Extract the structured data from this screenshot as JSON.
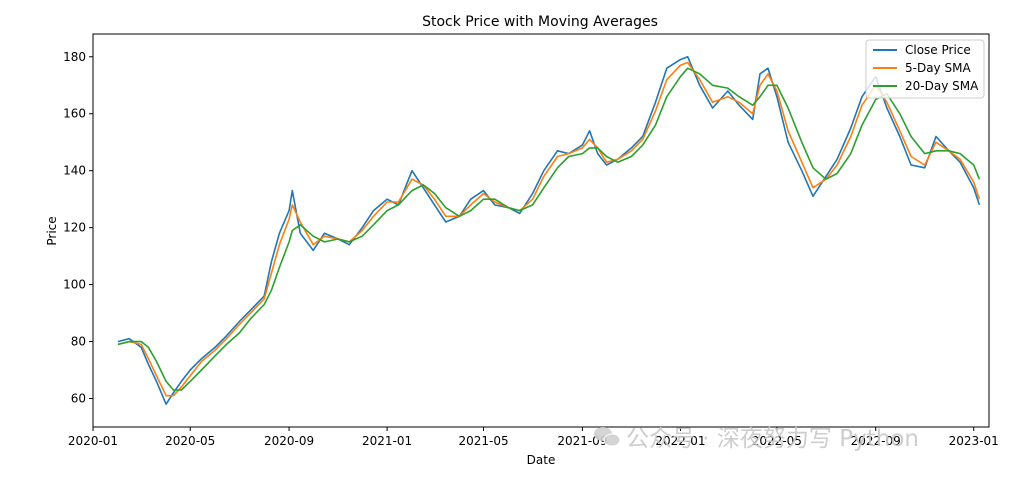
{
  "watermark": {
    "text": "公众号 · 深夜努力写 Python",
    "icon": "wechat-icon"
  },
  "chart_data": {
    "type": "line",
    "title": "Stock Price with Moving Averages",
    "xlabel": "Date",
    "ylabel": "Price",
    "xlim": [
      "2020-01-01",
      "2023-01-20"
    ],
    "ylim": [
      50,
      188
    ],
    "yticks": [
      60,
      80,
      100,
      120,
      140,
      160,
      180
    ],
    "xticks": [
      "2020-01",
      "2020-05",
      "2020-09",
      "2021-01",
      "2021-05",
      "2021-09",
      "2022-01",
      "2022-05",
      "2022-09",
      "2023-01"
    ],
    "legend_position": "top-right",
    "grid": false,
    "series": [
      {
        "name": "Close Price",
        "color": "#1f77b4",
        "points": [
          [
            "2020-02-01",
            80
          ],
          [
            "2020-02-15",
            81
          ],
          [
            "2020-03-01",
            78
          ],
          [
            "2020-03-10",
            72
          ],
          [
            "2020-03-20",
            66
          ],
          [
            "2020-04-01",
            58
          ],
          [
            "2020-04-10",
            62
          ],
          [
            "2020-04-20",
            66
          ],
          [
            "2020-05-01",
            70
          ],
          [
            "2020-05-15",
            74
          ],
          [
            "2020-06-01",
            78
          ],
          [
            "2020-06-15",
            82
          ],
          [
            "2020-07-01",
            87
          ],
          [
            "2020-07-15",
            91
          ],
          [
            "2020-08-01",
            96
          ],
          [
            "2020-08-10",
            108
          ],
          [
            "2020-08-20",
            118
          ],
          [
            "2020-09-01",
            126
          ],
          [
            "2020-09-05",
            133
          ],
          [
            "2020-09-15",
            118
          ],
          [
            "2020-10-01",
            112
          ],
          [
            "2020-10-15",
            118
          ],
          [
            "2020-11-01",
            116
          ],
          [
            "2020-11-15",
            114
          ],
          [
            "2020-12-01",
            120
          ],
          [
            "2020-12-15",
            126
          ],
          [
            "2021-01-01",
            130
          ],
          [
            "2021-01-15",
            128
          ],
          [
            "2021-02-01",
            140
          ],
          [
            "2021-02-15",
            134
          ],
          [
            "2021-03-01",
            128
          ],
          [
            "2021-03-15",
            122
          ],
          [
            "2021-04-01",
            124
          ],
          [
            "2021-04-15",
            130
          ],
          [
            "2021-05-01",
            133
          ],
          [
            "2021-05-15",
            128
          ],
          [
            "2021-06-01",
            127
          ],
          [
            "2021-06-15",
            125
          ],
          [
            "2021-07-01",
            132
          ],
          [
            "2021-07-15",
            140
          ],
          [
            "2021-08-01",
            147
          ],
          [
            "2021-08-15",
            146
          ],
          [
            "2021-09-01",
            149
          ],
          [
            "2021-09-10",
            154
          ],
          [
            "2021-09-20",
            146
          ],
          [
            "2021-10-01",
            142
          ],
          [
            "2021-10-15",
            144
          ],
          [
            "2021-11-01",
            148
          ],
          [
            "2021-11-15",
            152
          ],
          [
            "2021-12-01",
            164
          ],
          [
            "2021-12-15",
            176
          ],
          [
            "2022-01-01",
            179
          ],
          [
            "2022-01-10",
            180
          ],
          [
            "2022-01-25",
            170
          ],
          [
            "2022-02-10",
            162
          ],
          [
            "2022-03-01",
            168
          ],
          [
            "2022-03-15",
            163
          ],
          [
            "2022-04-01",
            158
          ],
          [
            "2022-04-10",
            174
          ],
          [
            "2022-04-20",
            176
          ],
          [
            "2022-05-01",
            166
          ],
          [
            "2022-05-15",
            150
          ],
          [
            "2022-06-01",
            140
          ],
          [
            "2022-06-15",
            131
          ],
          [
            "2022-07-01",
            138
          ],
          [
            "2022-07-15",
            144
          ],
          [
            "2022-08-01",
            155
          ],
          [
            "2022-08-15",
            166
          ],
          [
            "2022-09-01",
            173
          ],
          [
            "2022-09-15",
            162
          ],
          [
            "2022-10-01",
            152
          ],
          [
            "2022-10-15",
            142
          ],
          [
            "2022-11-01",
            141
          ],
          [
            "2022-11-15",
            152
          ],
          [
            "2022-12-01",
            147
          ],
          [
            "2022-12-15",
            143
          ],
          [
            "2023-01-01",
            134
          ],
          [
            "2023-01-08",
            128
          ]
        ]
      },
      {
        "name": "5-Day SMA",
        "color": "#ff7f0e",
        "points": [
          [
            "2020-02-01",
            79
          ],
          [
            "2020-02-15",
            80
          ],
          [
            "2020-03-01",
            79
          ],
          [
            "2020-03-10",
            74
          ],
          [
            "2020-03-20",
            68
          ],
          [
            "2020-04-01",
            61
          ],
          [
            "2020-04-10",
            61
          ],
          [
            "2020-04-20",
            64
          ],
          [
            "2020-05-01",
            68
          ],
          [
            "2020-05-15",
            73
          ],
          [
            "2020-06-01",
            77
          ],
          [
            "2020-06-15",
            81
          ],
          [
            "2020-07-01",
            86
          ],
          [
            "2020-07-15",
            90
          ],
          [
            "2020-08-01",
            95
          ],
          [
            "2020-08-10",
            104
          ],
          [
            "2020-08-20",
            114
          ],
          [
            "2020-09-01",
            123
          ],
          [
            "2020-09-05",
            128
          ],
          [
            "2020-09-15",
            122
          ],
          [
            "2020-10-01",
            114
          ],
          [
            "2020-10-15",
            117
          ],
          [
            "2020-11-01",
            116
          ],
          [
            "2020-11-15",
            115
          ],
          [
            "2020-12-01",
            119
          ],
          [
            "2020-12-15",
            124
          ],
          [
            "2021-01-01",
            129
          ],
          [
            "2021-01-15",
            129
          ],
          [
            "2021-02-01",
            137
          ],
          [
            "2021-02-15",
            135
          ],
          [
            "2021-03-01",
            130
          ],
          [
            "2021-03-15",
            124
          ],
          [
            "2021-04-01",
            124
          ],
          [
            "2021-04-15",
            128
          ],
          [
            "2021-05-01",
            132
          ],
          [
            "2021-05-15",
            129
          ],
          [
            "2021-06-01",
            127
          ],
          [
            "2021-06-15",
            126
          ],
          [
            "2021-07-01",
            130
          ],
          [
            "2021-07-15",
            138
          ],
          [
            "2021-08-01",
            145
          ],
          [
            "2021-08-15",
            146
          ],
          [
            "2021-09-01",
            148
          ],
          [
            "2021-09-10",
            151
          ],
          [
            "2021-09-20",
            148
          ],
          [
            "2021-10-01",
            143
          ],
          [
            "2021-10-15",
            144
          ],
          [
            "2021-11-01",
            147
          ],
          [
            "2021-11-15",
            151
          ],
          [
            "2021-12-01",
            161
          ],
          [
            "2021-12-15",
            172
          ],
          [
            "2022-01-01",
            177
          ],
          [
            "2022-01-10",
            178
          ],
          [
            "2022-01-25",
            172
          ],
          [
            "2022-02-10",
            164
          ],
          [
            "2022-03-01",
            166
          ],
          [
            "2022-03-15",
            164
          ],
          [
            "2022-04-01",
            160
          ],
          [
            "2022-04-10",
            170
          ],
          [
            "2022-04-20",
            174
          ],
          [
            "2022-05-01",
            168
          ],
          [
            "2022-05-15",
            154
          ],
          [
            "2022-06-01",
            143
          ],
          [
            "2022-06-15",
            134
          ],
          [
            "2022-07-01",
            137
          ],
          [
            "2022-07-15",
            142
          ],
          [
            "2022-08-01",
            152
          ],
          [
            "2022-08-15",
            163
          ],
          [
            "2022-09-01",
            170
          ],
          [
            "2022-09-15",
            164
          ],
          [
            "2022-10-01",
            154
          ],
          [
            "2022-10-15",
            145
          ],
          [
            "2022-11-01",
            142
          ],
          [
            "2022-11-15",
            150
          ],
          [
            "2022-12-01",
            147
          ],
          [
            "2022-12-15",
            144
          ],
          [
            "2023-01-01",
            136
          ],
          [
            "2023-01-08",
            130
          ]
        ]
      },
      {
        "name": "20-Day SMA",
        "color": "#2ca02c",
        "points": [
          [
            "2020-02-01",
            79
          ],
          [
            "2020-02-15",
            80
          ],
          [
            "2020-03-01",
            80
          ],
          [
            "2020-03-10",
            78
          ],
          [
            "2020-03-20",
            73
          ],
          [
            "2020-04-01",
            66
          ],
          [
            "2020-04-10",
            63
          ],
          [
            "2020-04-20",
            63
          ],
          [
            "2020-05-01",
            66
          ],
          [
            "2020-05-15",
            70
          ],
          [
            "2020-06-01",
            75
          ],
          [
            "2020-06-15",
            79
          ],
          [
            "2020-07-01",
            83
          ],
          [
            "2020-07-15",
            88
          ],
          [
            "2020-08-01",
            93
          ],
          [
            "2020-08-10",
            98
          ],
          [
            "2020-08-20",
            106
          ],
          [
            "2020-09-01",
            115
          ],
          [
            "2020-09-05",
            119
          ],
          [
            "2020-09-15",
            121
          ],
          [
            "2020-10-01",
            117
          ],
          [
            "2020-10-15",
            115
          ],
          [
            "2020-11-01",
            116
          ],
          [
            "2020-11-15",
            115
          ],
          [
            "2020-12-01",
            117
          ],
          [
            "2020-12-15",
            121
          ],
          [
            "2021-01-01",
            126
          ],
          [
            "2021-01-15",
            128
          ],
          [
            "2021-02-01",
            133
          ],
          [
            "2021-02-15",
            135
          ],
          [
            "2021-03-01",
            132
          ],
          [
            "2021-03-15",
            127
          ],
          [
            "2021-04-01",
            124
          ],
          [
            "2021-04-15",
            126
          ],
          [
            "2021-05-01",
            130
          ],
          [
            "2021-05-15",
            130
          ],
          [
            "2021-06-01",
            127
          ],
          [
            "2021-06-15",
            126
          ],
          [
            "2021-07-01",
            128
          ],
          [
            "2021-07-15",
            134
          ],
          [
            "2021-08-01",
            141
          ],
          [
            "2021-08-15",
            145
          ],
          [
            "2021-09-01",
            146
          ],
          [
            "2021-09-10",
            148
          ],
          [
            "2021-09-20",
            148
          ],
          [
            "2021-10-01",
            145
          ],
          [
            "2021-10-15",
            143
          ],
          [
            "2021-11-01",
            145
          ],
          [
            "2021-11-15",
            149
          ],
          [
            "2021-12-01",
            156
          ],
          [
            "2021-12-15",
            166
          ],
          [
            "2022-01-01",
            173
          ],
          [
            "2022-01-10",
            176
          ],
          [
            "2022-01-25",
            174
          ],
          [
            "2022-02-10",
            170
          ],
          [
            "2022-03-01",
            169
          ],
          [
            "2022-03-15",
            166
          ],
          [
            "2022-04-01",
            163
          ],
          [
            "2022-04-10",
            166
          ],
          [
            "2022-04-20",
            170
          ],
          [
            "2022-05-01",
            170
          ],
          [
            "2022-05-15",
            162
          ],
          [
            "2022-06-01",
            150
          ],
          [
            "2022-06-15",
            141
          ],
          [
            "2022-07-01",
            137
          ],
          [
            "2022-07-15",
            139
          ],
          [
            "2022-08-01",
            146
          ],
          [
            "2022-08-15",
            156
          ],
          [
            "2022-09-01",
            165
          ],
          [
            "2022-09-15",
            167
          ],
          [
            "2022-10-01",
            160
          ],
          [
            "2022-10-15",
            152
          ],
          [
            "2022-11-01",
            146
          ],
          [
            "2022-11-15",
            147
          ],
          [
            "2022-12-01",
            147
          ],
          [
            "2022-12-15",
            146
          ],
          [
            "2023-01-01",
            142
          ],
          [
            "2023-01-08",
            137
          ]
        ]
      }
    ]
  }
}
